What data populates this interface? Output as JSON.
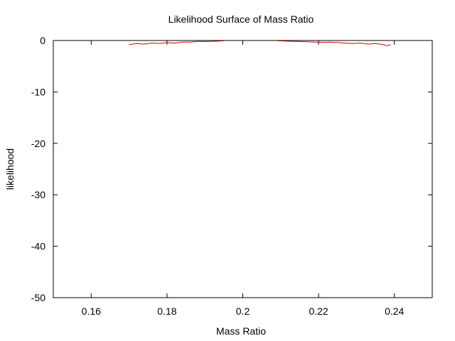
{
  "chart_data": {
    "type": "line",
    "title": "Likelihood Surface of Mass Ratio",
    "xlabel": "Mass Ratio",
    "ylabel": "likelihood",
    "xlim": [
      0.15,
      0.25
    ],
    "ylim": [
      -50,
      0
    ],
    "xticks": [
      0.16,
      0.18,
      0.2,
      0.22,
      0.24
    ],
    "xtick_labels": [
      "0.16",
      "0.18",
      "0.2",
      "0.22",
      "0.24"
    ],
    "yticks": [
      0,
      -10,
      -20,
      -30,
      -40,
      -50
    ],
    "ytick_labels": [
      "0",
      "-10",
      "-20",
      "-30",
      "-40",
      "-50"
    ],
    "grid": false,
    "legend": "none",
    "series": [
      {
        "color": "#cc0000",
        "x": [
          0.17,
          0.172,
          0.174,
          0.176,
          0.178,
          0.18,
          0.182,
          0.184,
          0.186,
          0.188,
          0.19,
          0.192,
          0.194,
          0.195
        ],
        "y": [
          -0.8,
          -0.6,
          -0.7,
          -0.5,
          -0.6,
          -0.4,
          -0.5,
          -0.3,
          -0.3,
          -0.2,
          -0.2,
          -0.15,
          -0.1,
          -0.05
        ]
      },
      {
        "color": "#cc0000",
        "x": [
          0.209,
          0.211,
          0.213,
          0.215,
          0.217,
          0.219,
          0.221,
          0.223,
          0.225,
          0.227,
          0.229,
          0.231,
          0.233,
          0.235,
          0.237,
          0.238,
          0.239
        ],
        "y": [
          -0.05,
          -0.1,
          -0.15,
          -0.2,
          -0.25,
          -0.3,
          -0.35,
          -0.3,
          -0.4,
          -0.5,
          -0.6,
          -0.5,
          -0.7,
          -0.6,
          -0.8,
          -1.0,
          -0.8
        ]
      }
    ]
  }
}
